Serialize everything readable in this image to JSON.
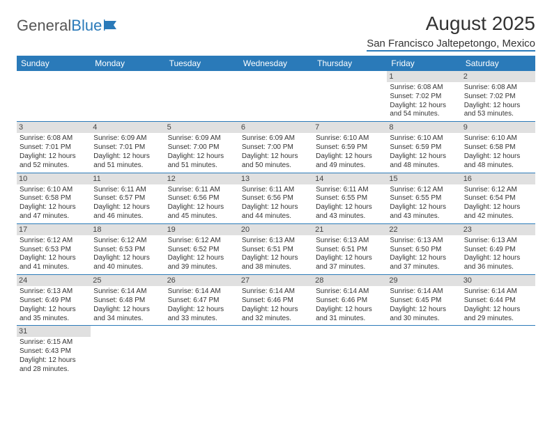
{
  "brand": {
    "part1": "General",
    "part2": "Blue"
  },
  "title": "August 2025",
  "location": "San Francisco Jaltepetongo, Mexico",
  "colors": {
    "header_bg": "#2a7ab9",
    "header_text": "#ffffff",
    "daynum_bg": "#e0e0e0",
    "border": "#2a7ab9",
    "text": "#333333",
    "page_bg": "#ffffff"
  },
  "day_headers": [
    "Sunday",
    "Monday",
    "Tuesday",
    "Wednesday",
    "Thursday",
    "Friday",
    "Saturday"
  ],
  "weeks": [
    [
      {
        "n": "",
        "sunrise": "",
        "sunset": "",
        "daylight": ""
      },
      {
        "n": "",
        "sunrise": "",
        "sunset": "",
        "daylight": ""
      },
      {
        "n": "",
        "sunrise": "",
        "sunset": "",
        "daylight": ""
      },
      {
        "n": "",
        "sunrise": "",
        "sunset": "",
        "daylight": ""
      },
      {
        "n": "",
        "sunrise": "",
        "sunset": "",
        "daylight": ""
      },
      {
        "n": "1",
        "sunrise": "Sunrise: 6:08 AM",
        "sunset": "Sunset: 7:02 PM",
        "daylight": "Daylight: 12 hours and 54 minutes."
      },
      {
        "n": "2",
        "sunrise": "Sunrise: 6:08 AM",
        "sunset": "Sunset: 7:02 PM",
        "daylight": "Daylight: 12 hours and 53 minutes."
      }
    ],
    [
      {
        "n": "3",
        "sunrise": "Sunrise: 6:08 AM",
        "sunset": "Sunset: 7:01 PM",
        "daylight": "Daylight: 12 hours and 52 minutes."
      },
      {
        "n": "4",
        "sunrise": "Sunrise: 6:09 AM",
        "sunset": "Sunset: 7:01 PM",
        "daylight": "Daylight: 12 hours and 51 minutes."
      },
      {
        "n": "5",
        "sunrise": "Sunrise: 6:09 AM",
        "sunset": "Sunset: 7:00 PM",
        "daylight": "Daylight: 12 hours and 51 minutes."
      },
      {
        "n": "6",
        "sunrise": "Sunrise: 6:09 AM",
        "sunset": "Sunset: 7:00 PM",
        "daylight": "Daylight: 12 hours and 50 minutes."
      },
      {
        "n": "7",
        "sunrise": "Sunrise: 6:10 AM",
        "sunset": "Sunset: 6:59 PM",
        "daylight": "Daylight: 12 hours and 49 minutes."
      },
      {
        "n": "8",
        "sunrise": "Sunrise: 6:10 AM",
        "sunset": "Sunset: 6:59 PM",
        "daylight": "Daylight: 12 hours and 48 minutes."
      },
      {
        "n": "9",
        "sunrise": "Sunrise: 6:10 AM",
        "sunset": "Sunset: 6:58 PM",
        "daylight": "Daylight: 12 hours and 48 minutes."
      }
    ],
    [
      {
        "n": "10",
        "sunrise": "Sunrise: 6:10 AM",
        "sunset": "Sunset: 6:58 PM",
        "daylight": "Daylight: 12 hours and 47 minutes."
      },
      {
        "n": "11",
        "sunrise": "Sunrise: 6:11 AM",
        "sunset": "Sunset: 6:57 PM",
        "daylight": "Daylight: 12 hours and 46 minutes."
      },
      {
        "n": "12",
        "sunrise": "Sunrise: 6:11 AM",
        "sunset": "Sunset: 6:56 PM",
        "daylight": "Daylight: 12 hours and 45 minutes."
      },
      {
        "n": "13",
        "sunrise": "Sunrise: 6:11 AM",
        "sunset": "Sunset: 6:56 PM",
        "daylight": "Daylight: 12 hours and 44 minutes."
      },
      {
        "n": "14",
        "sunrise": "Sunrise: 6:11 AM",
        "sunset": "Sunset: 6:55 PM",
        "daylight": "Daylight: 12 hours and 43 minutes."
      },
      {
        "n": "15",
        "sunrise": "Sunrise: 6:12 AM",
        "sunset": "Sunset: 6:55 PM",
        "daylight": "Daylight: 12 hours and 43 minutes."
      },
      {
        "n": "16",
        "sunrise": "Sunrise: 6:12 AM",
        "sunset": "Sunset: 6:54 PM",
        "daylight": "Daylight: 12 hours and 42 minutes."
      }
    ],
    [
      {
        "n": "17",
        "sunrise": "Sunrise: 6:12 AM",
        "sunset": "Sunset: 6:53 PM",
        "daylight": "Daylight: 12 hours and 41 minutes."
      },
      {
        "n": "18",
        "sunrise": "Sunrise: 6:12 AM",
        "sunset": "Sunset: 6:53 PM",
        "daylight": "Daylight: 12 hours and 40 minutes."
      },
      {
        "n": "19",
        "sunrise": "Sunrise: 6:12 AM",
        "sunset": "Sunset: 6:52 PM",
        "daylight": "Daylight: 12 hours and 39 minutes."
      },
      {
        "n": "20",
        "sunrise": "Sunrise: 6:13 AM",
        "sunset": "Sunset: 6:51 PM",
        "daylight": "Daylight: 12 hours and 38 minutes."
      },
      {
        "n": "21",
        "sunrise": "Sunrise: 6:13 AM",
        "sunset": "Sunset: 6:51 PM",
        "daylight": "Daylight: 12 hours and 37 minutes."
      },
      {
        "n": "22",
        "sunrise": "Sunrise: 6:13 AM",
        "sunset": "Sunset: 6:50 PM",
        "daylight": "Daylight: 12 hours and 37 minutes."
      },
      {
        "n": "23",
        "sunrise": "Sunrise: 6:13 AM",
        "sunset": "Sunset: 6:49 PM",
        "daylight": "Daylight: 12 hours and 36 minutes."
      }
    ],
    [
      {
        "n": "24",
        "sunrise": "Sunrise: 6:13 AM",
        "sunset": "Sunset: 6:49 PM",
        "daylight": "Daylight: 12 hours and 35 minutes."
      },
      {
        "n": "25",
        "sunrise": "Sunrise: 6:14 AM",
        "sunset": "Sunset: 6:48 PM",
        "daylight": "Daylight: 12 hours and 34 minutes."
      },
      {
        "n": "26",
        "sunrise": "Sunrise: 6:14 AM",
        "sunset": "Sunset: 6:47 PM",
        "daylight": "Daylight: 12 hours and 33 minutes."
      },
      {
        "n": "27",
        "sunrise": "Sunrise: 6:14 AM",
        "sunset": "Sunset: 6:46 PM",
        "daylight": "Daylight: 12 hours and 32 minutes."
      },
      {
        "n": "28",
        "sunrise": "Sunrise: 6:14 AM",
        "sunset": "Sunset: 6:46 PM",
        "daylight": "Daylight: 12 hours and 31 minutes."
      },
      {
        "n": "29",
        "sunrise": "Sunrise: 6:14 AM",
        "sunset": "Sunset: 6:45 PM",
        "daylight": "Daylight: 12 hours and 30 minutes."
      },
      {
        "n": "30",
        "sunrise": "Sunrise: 6:14 AM",
        "sunset": "Sunset: 6:44 PM",
        "daylight": "Daylight: 12 hours and 29 minutes."
      }
    ],
    [
      {
        "n": "31",
        "sunrise": "Sunrise: 6:15 AM",
        "sunset": "Sunset: 6:43 PM",
        "daylight": "Daylight: 12 hours and 28 minutes."
      },
      {
        "n": "",
        "sunrise": "",
        "sunset": "",
        "daylight": ""
      },
      {
        "n": "",
        "sunrise": "",
        "sunset": "",
        "daylight": ""
      },
      {
        "n": "",
        "sunrise": "",
        "sunset": "",
        "daylight": ""
      },
      {
        "n": "",
        "sunrise": "",
        "sunset": "",
        "daylight": ""
      },
      {
        "n": "",
        "sunrise": "",
        "sunset": "",
        "daylight": ""
      },
      {
        "n": "",
        "sunrise": "",
        "sunset": "",
        "daylight": ""
      }
    ]
  ]
}
